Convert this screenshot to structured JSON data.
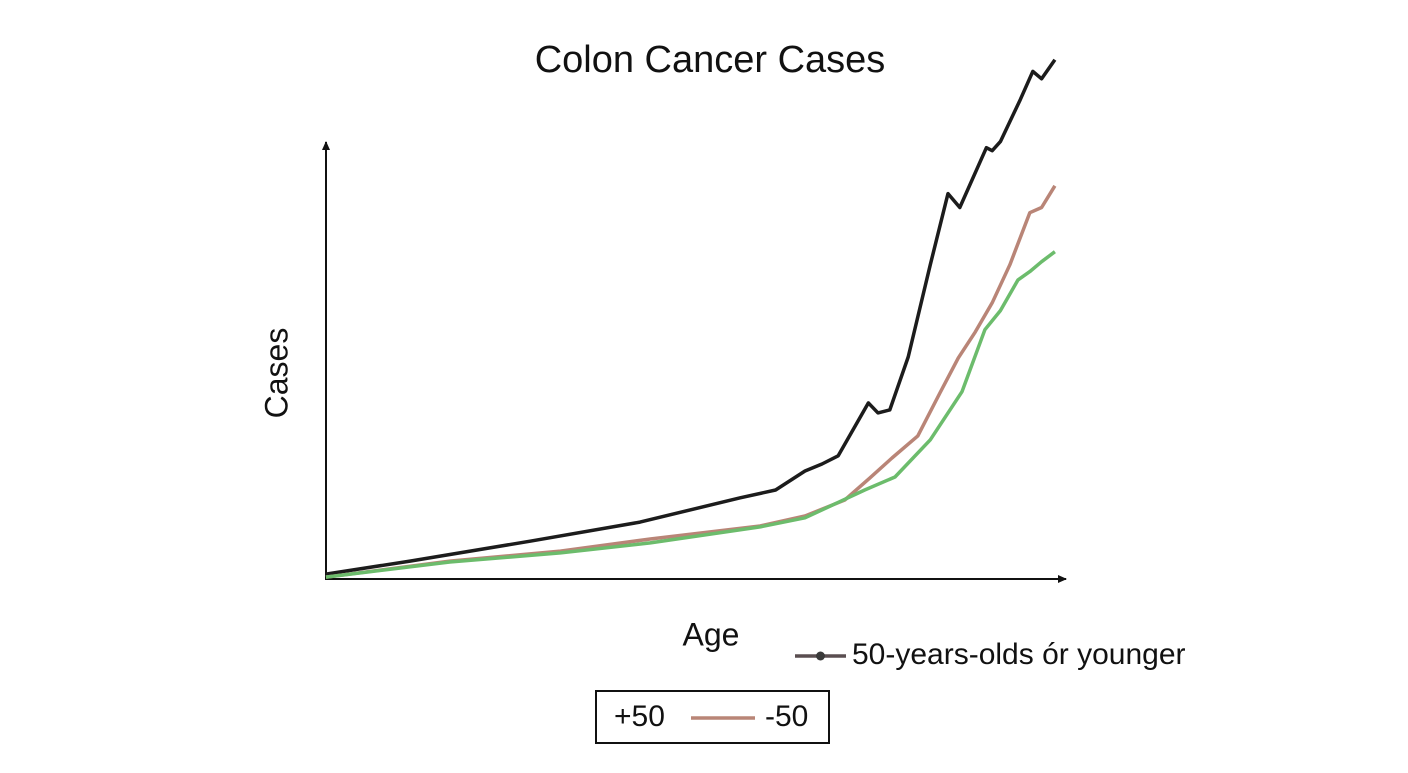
{
  "chart_data": {
    "type": "line",
    "title": "Colon Cancer Cases",
    "x_label": "Age",
    "y_label": "Cases",
    "xlim": [
      0,
      100
    ],
    "ylim": [
      0,
      120
    ],
    "series": [
      {
        "name": "+50",
        "color": "#1c1c1c",
        "marker": "none",
        "x": [
          0,
          11.4,
          27.7,
          42.6,
          56.2,
          61,
          65,
          67.3,
          69.5,
          73.6,
          74.9,
          76.5,
          79,
          82,
          84.4,
          86,
          89.6,
          90.4,
          91.5,
          94.2,
          95.9,
          97.1,
          98.9
        ],
        "values": [
          0.9,
          3.9,
          8.5,
          12.9,
          18.5,
          20.3,
          24.7,
          26.3,
          28.2,
          40.4,
          38.1,
          38.8,
          51,
          72.3,
          88.7,
          85.5,
          99.3,
          98.6,
          100.7,
          110.4,
          116.9,
          115.2,
          119.6
        ]
      },
      {
        "name": "-50",
        "color": "#b98577",
        "marker": "line",
        "x": [
          0,
          16.8,
          31.8,
          44,
          58.9,
          65,
          70.4,
          73.8,
          76.8,
          80.3,
          83.3,
          85.8,
          88.1,
          90.4,
          92.8,
          95.5,
          97.1,
          98.9
        ],
        "values": [
          0.2,
          3.9,
          6.2,
          9,
          12,
          14.3,
          18,
          23.1,
          27.7,
          32.8,
          42.7,
          50.8,
          56.8,
          63.5,
          72.3,
          84.3,
          85.5,
          90.5
        ]
      },
      {
        "name": "50-years-olds ór younger",
        "color": "#6cbc6c",
        "marker": "line-dot",
        "x": [
          0,
          16.8,
          31.8,
          44,
          58.9,
          65,
          69.7,
          73.1,
          77.2,
          82,
          86.3,
          89.4,
          91.5,
          93.9,
          95.5,
          97.1,
          98.9
        ],
        "values": [
          0.2,
          3.7,
          5.8,
          8.1,
          11.8,
          13.9,
          17.6,
          20.3,
          23.3,
          31.9,
          43,
          57.3,
          61.7,
          68.8,
          70.7,
          73,
          75.3
        ]
      }
    ]
  }
}
